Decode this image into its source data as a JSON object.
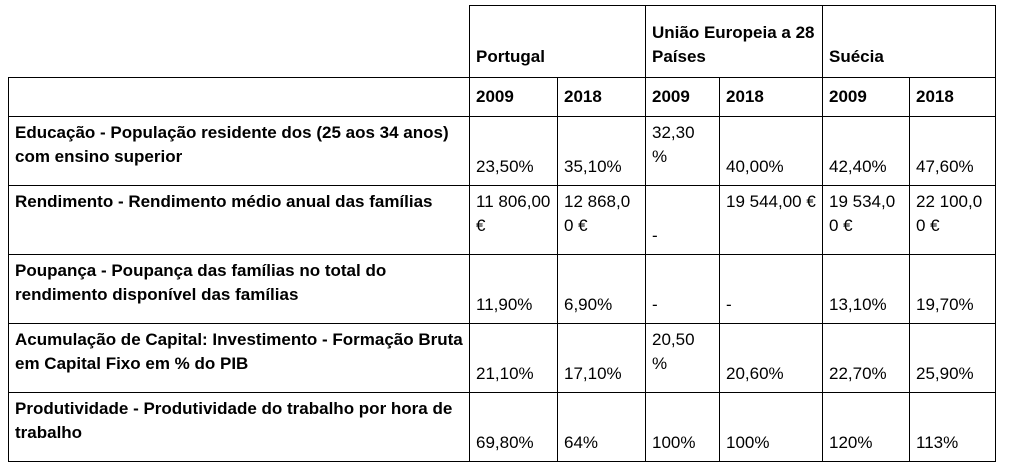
{
  "header": {
    "countries": [
      "Portugal",
      "União Europeia a 28 Países",
      "Suécia"
    ],
    "years": [
      "2009",
      "2018",
      "2009",
      "2018",
      "2009",
      "2018"
    ]
  },
  "rows": [
    {
      "label": " Educação - População residente dos (25 aos 34 anos) com ensino superior",
      "values": [
        "23,50%",
        "35,10%",
        "32,30 %",
        "40,00%",
        "42,40%",
        "47,60%"
      ]
    },
    {
      "label": "Rendimento - Rendimento médio anual das famílias",
      "values": [
        "11 806,00 €",
        "12 868,00 €",
        "-",
        "19 544,00 €",
        "19 534,00 €",
        "22 100,00 €"
      ]
    },
    {
      "label": "Poupança - Poupança das famílias no total do rendimento disponível das famílias",
      "values": [
        "11,90%",
        "6,90%",
        "-",
        "-",
        "13,10%",
        "19,70%"
      ]
    },
    {
      "label": "Acumulação de Capital: Investimento - Formação Bruta em Capital Fixo em % do PIB",
      "values": [
        "21,10%",
        "17,10%",
        "20,50 %",
        "20,60%",
        "22,70%",
        "25,90%"
      ]
    },
    {
      "label": "Produtividade - Produtividade do trabalho por hora de trabalho",
      "values": [
        "69,80%",
        "64%",
        "100%",
        "100%",
        "120%",
        "113%"
      ]
    }
  ]
}
